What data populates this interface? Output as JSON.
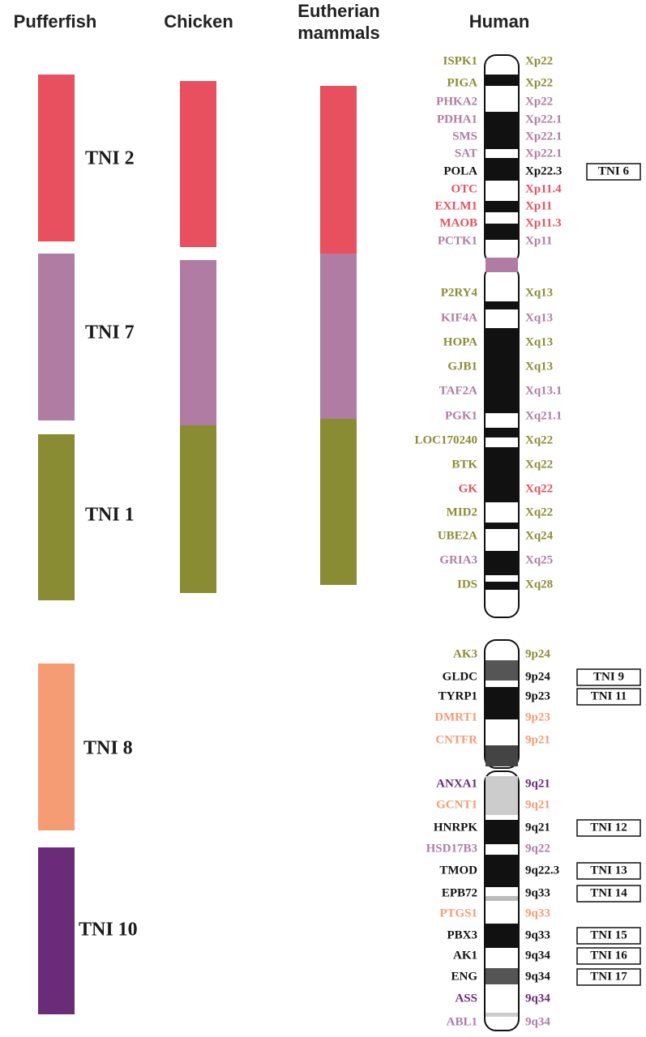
{
  "headers": {
    "pufferfish": "Pufferfish",
    "chicken": "Chicken",
    "eutherian": [
      "Eutherian",
      "mammals"
    ],
    "human": "Human"
  },
  "blocks": [
    "TNI 2",
    "TNI 7",
    "TNI 1",
    "TNI 8",
    "TNI 10"
  ],
  "colors": {
    "red": "#e8505f",
    "mauve": "#b07ca4",
    "olive": "#8a8c34",
    "salmon": "#f59c74",
    "purple": "#6a2c78",
    "black": "#111111"
  },
  "chromosomes": [
    {
      "genes": [
        {
          "name": "ISPK1",
          "band": "Xp22",
          "color": "olive"
        },
        {
          "name": "PIGA",
          "band": "Xp22",
          "color": "olive"
        },
        {
          "name": "PHKA2",
          "band": "Xp22",
          "color": "mauve"
        },
        {
          "name": "PDHA1",
          "band": "Xp22.1",
          "color": "mauve"
        },
        {
          "name": "SMS",
          "band": "Xp22.1",
          "color": "mauve"
        },
        {
          "name": "SAT",
          "band": "Xp22.1",
          "color": "mauve"
        },
        {
          "name": "POLA",
          "band": "Xp22.3",
          "color": "black",
          "tni": "TNI 6"
        },
        {
          "name": "OTC",
          "band": "Xp11.4",
          "color": "red"
        },
        {
          "name": "EXLM1",
          "band": "Xp11",
          "color": "red"
        },
        {
          "name": "MAOB",
          "band": "Xp11.3",
          "color": "red"
        },
        {
          "name": "PCTK1",
          "band": "Xp11",
          "color": "mauve"
        },
        {
          "name": "P2RY4",
          "band": "Xq13",
          "color": "olive"
        },
        {
          "name": "KIF4A",
          "band": "Xq13",
          "color": "mauve"
        },
        {
          "name": "HOPA",
          "band": "Xq13",
          "color": "olive"
        },
        {
          "name": "GJB1",
          "band": "Xq13",
          "color": "olive"
        },
        {
          "name": "TAF2A",
          "band": "Xq13.1",
          "color": "mauve"
        },
        {
          "name": "PGK1",
          "band": "Xq21.1",
          "color": "mauve"
        },
        {
          "name": "LOC170240",
          "band": "Xq22",
          "color": "olive"
        },
        {
          "name": "BTK",
          "band": "Xq22",
          "color": "olive"
        },
        {
          "name": "GK",
          "band": "Xq22",
          "color": "red"
        },
        {
          "name": "MID2",
          "band": "Xq22",
          "color": "olive"
        },
        {
          "name": "UBE2A",
          "band": "Xq24",
          "color": "olive"
        },
        {
          "name": "GRIA3",
          "band": "Xq25",
          "color": "mauve"
        },
        {
          "name": "IDS",
          "band": "Xq28",
          "color": "olive"
        }
      ]
    },
    {
      "genes": [
        {
          "name": "AK3",
          "band": "9p24",
          "color": "olive"
        },
        {
          "name": "GLDC",
          "band": "9p24",
          "color": "black",
          "tni": "TNI 9"
        },
        {
          "name": "TYRP1",
          "band": "9p23",
          "color": "black",
          "tni": "TNI 11"
        },
        {
          "name": "DMRT1",
          "band": "9p23",
          "color": "salmon"
        },
        {
          "name": "CNTFR",
          "band": "9p21",
          "color": "salmon"
        },
        {
          "name": "ANXA1",
          "band": "9q21",
          "color": "purple"
        },
        {
          "name": "GCNT1",
          "band": "9q21",
          "color": "salmon"
        },
        {
          "name": "HNRPK",
          "band": "9q21",
          "color": "black",
          "tni": "TNI 12"
        },
        {
          "name": "HSD17B3",
          "band": "9q22",
          "color": "mauve"
        },
        {
          "name": "TMOD",
          "band": "9q22.3",
          "color": "black",
          "tni": "TNI 13"
        },
        {
          "name": "EPB72",
          "band": "9q33",
          "color": "black",
          "tni": "TNI 14"
        },
        {
          "name": "PTGS1",
          "band": "9q33",
          "color": "salmon"
        },
        {
          "name": "PBX3",
          "band": "9q33",
          "color": "black",
          "tni": "TNI 15"
        },
        {
          "name": "AK1",
          "band": "9q34",
          "color": "black",
          "tni": "TNI 16"
        },
        {
          "name": "ENG",
          "band": "9q34",
          "color": "black",
          "tni": "TNI 17"
        },
        {
          "name": "ASS",
          "band": "9q34",
          "color": "purple"
        },
        {
          "name": "ABL1",
          "band": "9q34",
          "color": "mauve"
        }
      ]
    }
  ]
}
